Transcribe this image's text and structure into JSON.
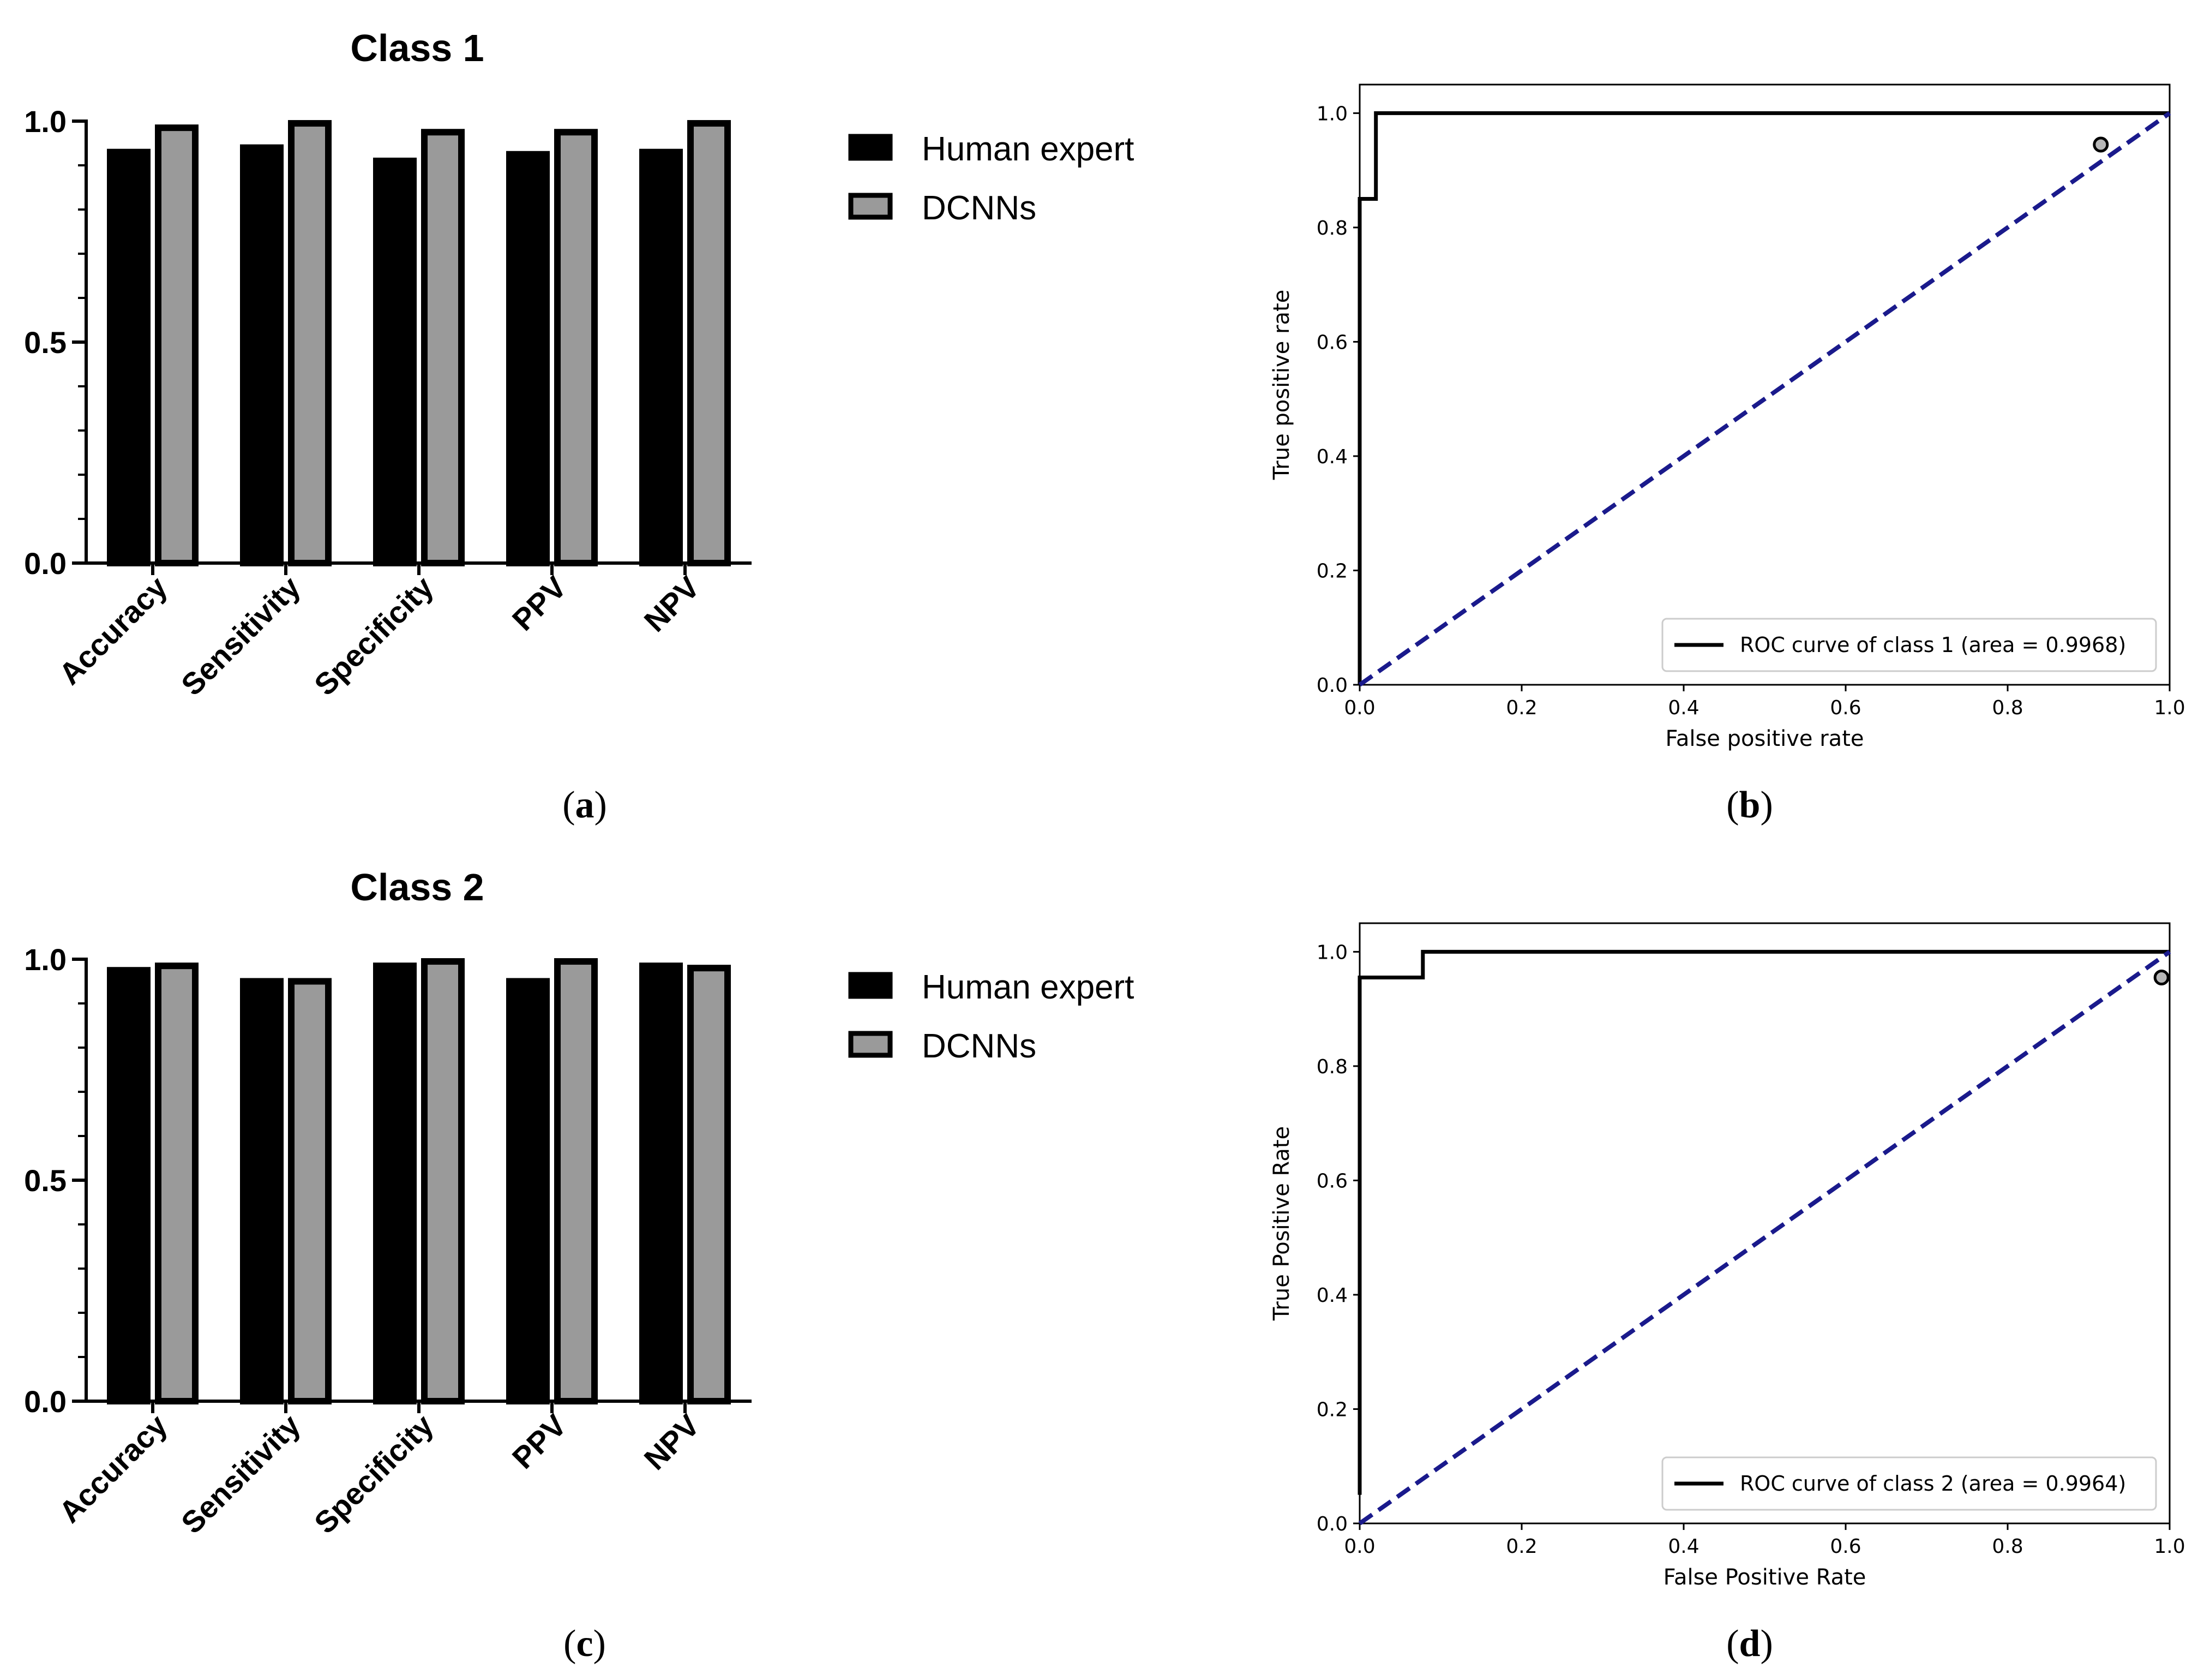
{
  "chart_data": [
    {
      "panel": "a",
      "type": "bar",
      "title": "Class 1",
      "categories": [
        "Accuracy",
        "Sensitivity",
        "Specificity",
        "PPV",
        "NPV"
      ],
      "ylim": [
        0,
        1.0
      ],
      "yticks": [
        "0.0",
        "0.5",
        "1.0"
      ],
      "legend_position": "right",
      "series": [
        {
          "name": "Human expert",
          "color": "#000000",
          "values": [
            0.93,
            0.94,
            0.91,
            0.925,
            0.93
          ]
        },
        {
          "name": "DCNNs",
          "color": "#9a9a9a",
          "values": [
            0.985,
            0.995,
            0.975,
            0.975,
            0.995
          ]
        }
      ]
    },
    {
      "panel": "b",
      "type": "line",
      "xlabel": "False positive rate",
      "ylabel": "True positive rate",
      "xlim": [
        0,
        1.0
      ],
      "ylim": [
        0,
        1.05
      ],
      "xticks": [
        "0.0",
        "0.2",
        "0.4",
        "0.6",
        "0.8",
        "1.0"
      ],
      "yticks": [
        "0.0",
        "0.2",
        "0.4",
        "0.6",
        "0.8",
        "1.0"
      ],
      "legend_position": "lower right",
      "series": [
        {
          "name": "ROC curve of class 1 (area = 0.9968)",
          "color": "#000000",
          "style": "solid",
          "x": [
            0.0,
            0.0,
            0.02,
            0.02,
            1.0
          ],
          "y": [
            0.0,
            0.85,
            0.85,
            1.0,
            1.0
          ]
        },
        {
          "color": "#1a1a8c",
          "style": "dashed",
          "x": [
            0.0,
            1.0
          ],
          "y": [
            0.0,
            1.0
          ]
        }
      ],
      "marker": {
        "x": 0.915,
        "y": 0.945
      }
    },
    {
      "panel": "c",
      "type": "bar",
      "title": "Class 2",
      "categories": [
        "Accuracy",
        "Sensitivity",
        "Specificity",
        "PPV",
        "NPV"
      ],
      "ylim": [
        0,
        1.0
      ],
      "yticks": [
        "0.0",
        "0.5",
        "1.0"
      ],
      "legend_position": "right",
      "series": [
        {
          "name": "Human expert",
          "color": "#000000",
          "values": [
            0.975,
            0.95,
            0.985,
            0.95,
            0.985
          ]
        },
        {
          "name": "DCNNs",
          "color": "#9a9a9a",
          "values": [
            0.985,
            0.95,
            0.995,
            0.995,
            0.98
          ]
        }
      ]
    },
    {
      "panel": "d",
      "type": "line",
      "xlabel": "False Positive Rate",
      "ylabel": "True Positive Rate",
      "xlim": [
        0,
        1.0
      ],
      "ylim": [
        0,
        1.05
      ],
      "xticks": [
        "0.0",
        "0.2",
        "0.4",
        "0.6",
        "0.8",
        "1.0"
      ],
      "yticks": [
        "0.0",
        "0.2",
        "0.4",
        "0.6",
        "0.8",
        "1.0"
      ],
      "legend_position": "lower right",
      "series": [
        {
          "name": "ROC curve of class 2 (area = 0.9964)",
          "color": "#000000",
          "style": "solid",
          "x": [
            0.0,
            0.0,
            0.078,
            0.078,
            1.0
          ],
          "y": [
            0.05,
            0.955,
            0.955,
            1.0,
            1.0
          ]
        },
        {
          "color": "#1a1a8c",
          "style": "dashed",
          "x": [
            0.0,
            1.0
          ],
          "y": [
            0.0,
            1.0
          ]
        }
      ],
      "marker": {
        "x": 0.99,
        "y": 0.955
      }
    }
  ],
  "panel_labels": [
    {
      "open": "(",
      "letter": "a",
      "close": ")"
    },
    {
      "open": "(",
      "letter": "b",
      "close": ")"
    },
    {
      "open": "(",
      "letter": "c",
      "close": ")"
    },
    {
      "open": "(",
      "letter": "d",
      "close": ")"
    }
  ]
}
